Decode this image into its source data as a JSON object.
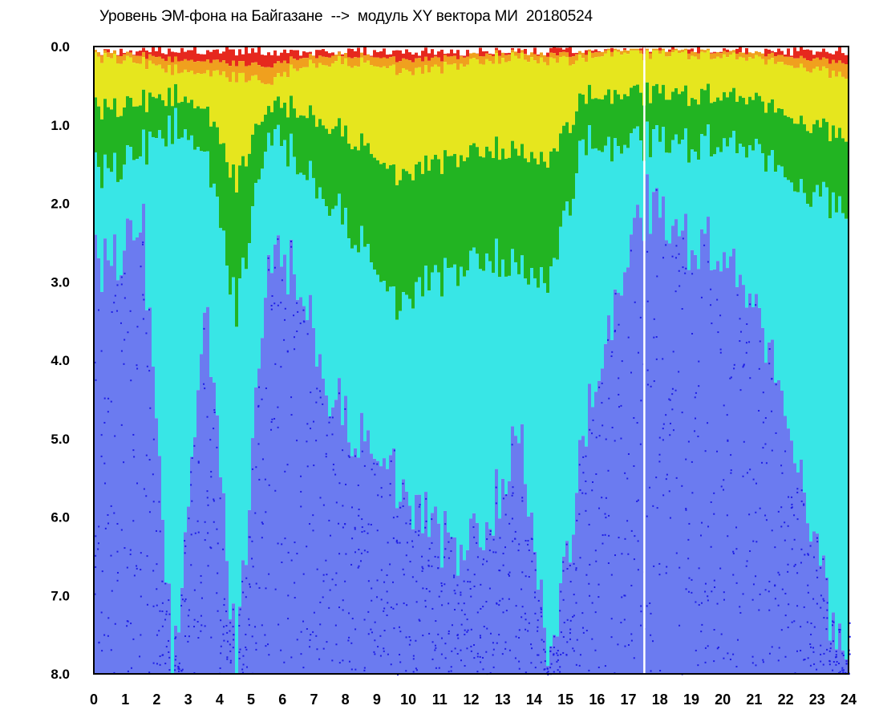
{
  "chart_data": {
    "type": "heatmap",
    "title": "Уровень ЭМ-фона на Байгазане  -->  модуль XY вектора МИ  20180524",
    "xlim": [
      0,
      24
    ],
    "ylim": [
      0,
      8
    ],
    "y_inverted": true,
    "x_ticks": [
      "0",
      "1",
      "2",
      "3",
      "4",
      "5",
      "6",
      "7",
      "8",
      "9",
      "10",
      "11",
      "12",
      "13",
      "14",
      "15",
      "16",
      "17",
      "18",
      "19",
      "20",
      "21",
      "22",
      "23",
      "24"
    ],
    "y_ticks": [
      "0.0",
      "1.0",
      "2.0",
      "3.0",
      "4.0",
      "5.0",
      "6.0",
      "7.0",
      "8.0"
    ],
    "grid": false,
    "color_scale": [
      "#1e1ee6",
      "#6b7bf0",
      "#38e6e6",
      "#22b422",
      "#e6e61e",
      "#f0a01e",
      "#e6281e"
    ],
    "colorscale_order": "low to high: blue, light blue, cyan, green, yellow, orange, red",
    "white_gaps_hours": [
      17.5
    ],
    "hourly_red_front_depth": [
      0.15,
      0.2,
      0.3,
      0.3,
      0.4,
      0.45,
      0.25,
      0.2,
      0.2,
      0.3,
      0.3,
      0.25,
      0.15,
      0.15,
      0.2,
      0.15,
      0.1,
      0.1,
      0.1,
      0.1,
      0.15,
      0.2,
      0.25,
      0.35
    ],
    "hourly_green_extent": [
      1.6,
      1.3,
      1.0,
      1.2,
      3.4,
      1.0,
      1.5,
      2.0,
      2.5,
      3.3,
      3.0,
      2.9,
      2.6,
      2.9,
      3.0,
      1.2,
      1.4,
      1.2,
      1.3,
      1.2,
      1.3,
      1.5,
      1.8,
      2.0
    ],
    "hourly_cyan_extent": [
      2.8,
      2.2,
      8.0,
      3.0,
      8.0,
      2.5,
      3.0,
      4.5,
      5.0,
      5.5,
      6.0,
      6.5,
      6.0,
      5.0,
      8.0,
      5.0,
      3.5,
      2.0,
      2.5,
      2.5,
      3.0,
      4.0,
      5.5,
      7.5
    ]
  }
}
